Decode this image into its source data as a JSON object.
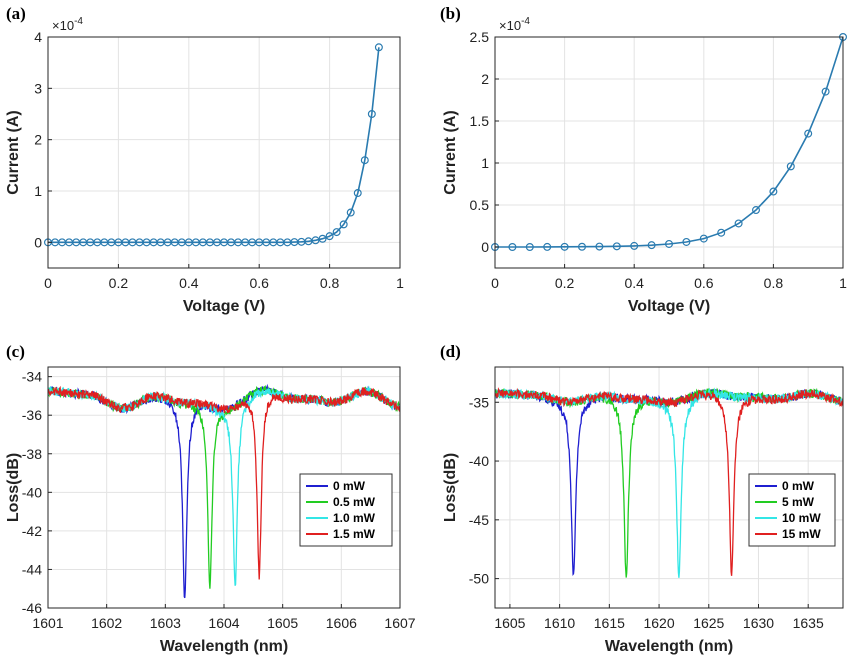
{
  "chart_data": [
    {
      "panel": "(a)",
      "type": "line",
      "xlabel": "Voltage (V)",
      "ylabel": "Current (A)",
      "y_multiplier": "×10",
      "y_exponent": "-4",
      "xlim": [
        0,
        1
      ],
      "ylim": [
        -0.5,
        4
      ],
      "xticks": [
        0,
        0.2,
        0.4,
        0.6,
        0.8,
        1
      ],
      "xtick_labels": [
        "0",
        "0.2",
        "0.4",
        "0.6",
        "0.8",
        "1"
      ],
      "yticks": [
        0,
        1,
        2,
        3,
        4
      ],
      "ytick_labels": [
        "0",
        "1",
        "2",
        "3",
        "4"
      ],
      "grid": true,
      "marker": "circle",
      "color": "#2a7bb0",
      "series": [
        {
          "x": [
            0,
            0.02,
            0.04,
            0.06,
            0.08,
            0.1,
            0.12,
            0.14,
            0.16,
            0.18,
            0.2,
            0.22,
            0.24,
            0.26,
            0.28,
            0.3,
            0.32,
            0.34,
            0.36,
            0.38,
            0.4,
            0.42,
            0.44,
            0.46,
            0.48,
            0.5,
            0.52,
            0.54,
            0.56,
            0.58,
            0.6,
            0.62,
            0.64,
            0.66,
            0.68,
            0.7,
            0.72,
            0.74,
            0.76,
            0.78,
            0.8,
            0.82,
            0.84,
            0.86,
            0.88,
            0.9,
            0.92,
            0.94
          ],
          "y": [
            0,
            0,
            0,
            0,
            0,
            0,
            0,
            0,
            0,
            0,
            0,
            0,
            0,
            0,
            0,
            0,
            0,
            0,
            0,
            0,
            0,
            0,
            0,
            0,
            0,
            0,
            0,
            0,
            0,
            0,
            0,
            0,
            0,
            0,
            0,
            0.005,
            0.01,
            0.02,
            0.04,
            0.07,
            0.12,
            0.2,
            0.35,
            0.58,
            0.96,
            1.6,
            2.5,
            3.8
          ]
        }
      ]
    },
    {
      "panel": "(b)",
      "type": "line",
      "xlabel": "Voltage (V)",
      "ylabel": "Current (A)",
      "y_multiplier": "×10",
      "y_exponent": "-4",
      "xlim": [
        0,
        1
      ],
      "ylim": [
        -0.25,
        2.5
      ],
      "xticks": [
        0,
        0.2,
        0.4,
        0.6,
        0.8,
        1
      ],
      "xtick_labels": [
        "0",
        "0.2",
        "0.4",
        "0.6",
        "0.8",
        "1"
      ],
      "yticks": [
        0,
        0.5,
        1,
        1.5,
        2,
        2.5
      ],
      "ytick_labels": [
        "0",
        "0.5",
        "1",
        "1.5",
        "2",
        "2.5"
      ],
      "grid": true,
      "marker": "circle",
      "color": "#2a7bb0",
      "series": [
        {
          "x": [
            0,
            0.05,
            0.1,
            0.15,
            0.2,
            0.25,
            0.3,
            0.35,
            0.4,
            0.45,
            0.5,
            0.55,
            0.6,
            0.65,
            0.7,
            0.75,
            0.8,
            0.85,
            0.9,
            0.95,
            1.0
          ],
          "y": [
            0,
            0,
            0,
            0.001,
            0.002,
            0.003,
            0.005,
            0.008,
            0.013,
            0.022,
            0.036,
            0.06,
            0.1,
            0.17,
            0.28,
            0.44,
            0.66,
            0.96,
            1.35,
            1.85,
            2.5
          ]
        }
      ]
    },
    {
      "panel": "(c)",
      "type": "line",
      "xlabel": "Wavelength (nm)",
      "ylabel": "Loss(dB)",
      "xlim": [
        1601,
        1607
      ],
      "ylim": [
        -46,
        -33.5
      ],
      "xticks": [
        1601,
        1602,
        1603,
        1604,
        1605,
        1606,
        1607
      ],
      "xtick_labels": [
        "1601",
        "1602",
        "1603",
        "1604",
        "1605",
        "1606",
        "1607"
      ],
      "yticks": [
        -46,
        -44,
        -42,
        -40,
        -38,
        -36,
        -34
      ],
      "ytick_labels": [
        "-46",
        "-44",
        "-42",
        "-40",
        "-38",
        "-36",
        "-34"
      ],
      "grid": true,
      "legend_position": "right",
      "baseline": -35.2,
      "series": [
        {
          "name": "0 mW",
          "color": "#1f1fd0",
          "dip_center": 1603.33,
          "dip_min": -45.3
        },
        {
          "name": "0.5 mW",
          "color": "#22cc22",
          "dip_center": 1603.76,
          "dip_min": -44.6
        },
        {
          "name": "1.0 mW",
          "color": "#33e6e6",
          "dip_center": 1604.19,
          "dip_min": -44.5
        },
        {
          "name": "1.5 mW",
          "color": "#e02020",
          "dip_center": 1604.6,
          "dip_min": -44.8
        }
      ]
    },
    {
      "panel": "(d)",
      "type": "line",
      "xlabel": "Wavelength (nm)",
      "ylabel": "Loss(dB)",
      "xlim": [
        1603.5,
        1638.5
      ],
      "ylim": [
        -52.5,
        -32
      ],
      "xticks": [
        1605,
        1610,
        1615,
        1620,
        1625,
        1630,
        1635
      ],
      "xtick_labels": [
        "1605",
        "1610",
        "1615",
        "1620",
        "1625",
        "1630",
        "1635"
      ],
      "yticks": [
        -50,
        -45,
        -40,
        -35
      ],
      "ytick_labels": [
        "-50",
        "-45",
        "-40",
        "-35"
      ],
      "grid": true,
      "legend_position": "right",
      "baseline": -34.6,
      "series": [
        {
          "name": "0 mW",
          "color": "#1f1fd0",
          "dip_center": 1611.4,
          "dip_min": -49.5
        },
        {
          "name": "5 mW",
          "color": "#22cc22",
          "dip_center": 1616.7,
          "dip_min": -49.9
        },
        {
          "name": "10 mW",
          "color": "#33e6e6",
          "dip_center": 1622.0,
          "dip_min": -49.8
        },
        {
          "name": "15 mW",
          "color": "#e02020",
          "dip_center": 1627.3,
          "dip_min": -49.8
        }
      ]
    }
  ]
}
